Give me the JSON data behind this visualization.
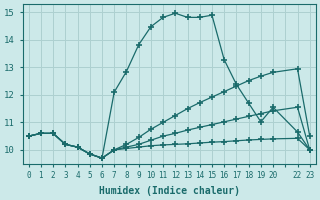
{
  "xlabel": "Humidex (Indice chaleur)",
  "bg_color": "#cce9e9",
  "grid_color": "#add0d0",
  "line_color": "#1a6b6b",
  "xlim": [
    -0.5,
    23.5
  ],
  "ylim": [
    9.5,
    15.3
  ],
  "yticks": [
    10,
    11,
    12,
    13,
    14,
    15
  ],
  "xtick_labels": [
    "0",
    "1",
    "2",
    "3",
    "4",
    "5",
    "6",
    "7",
    "8",
    "9",
    "10",
    "11",
    "12",
    "13",
    "14",
    "15",
    "16",
    "17",
    "18",
    "19",
    "20",
    "",
    "22",
    "23"
  ],
  "lines": [
    {
      "x": [
        0,
        1,
        2,
        3,
        4,
        5,
        6,
        7,
        8,
        9,
        10,
        11,
        12,
        13,
        14,
        15,
        16,
        17,
        18,
        19,
        20,
        22,
        23
      ],
      "y": [
        10.5,
        10.6,
        10.6,
        10.2,
        10.1,
        9.85,
        9.7,
        10.0,
        10.05,
        10.1,
        10.15,
        10.18,
        10.2,
        10.22,
        10.25,
        10.28,
        10.3,
        10.33,
        10.36,
        10.38,
        10.4,
        10.42,
        10.0
      ]
    },
    {
      "x": [
        0,
        1,
        2,
        3,
        4,
        5,
        6,
        7,
        8,
        9,
        10,
        11,
        12,
        13,
        14,
        15,
        16,
        17,
        18,
        19,
        20,
        22,
        23
      ],
      "y": [
        10.5,
        10.6,
        10.6,
        10.2,
        10.1,
        9.85,
        9.7,
        10.0,
        10.1,
        10.2,
        10.35,
        10.5,
        10.6,
        10.72,
        10.82,
        10.92,
        11.02,
        11.12,
        11.22,
        11.32,
        11.42,
        11.55,
        10.0
      ]
    },
    {
      "x": [
        0,
        1,
        2,
        3,
        4,
        5,
        6,
        7,
        8,
        9,
        10,
        11,
        12,
        13,
        14,
        15,
        16,
        17,
        18,
        19,
        20,
        22,
        23
      ],
      "y": [
        10.5,
        10.6,
        10.6,
        10.2,
        10.1,
        9.85,
        9.7,
        10.0,
        10.2,
        10.45,
        10.75,
        11.0,
        11.25,
        11.5,
        11.72,
        11.92,
        12.12,
        12.32,
        12.52,
        12.68,
        12.82,
        12.95,
        10.5
      ]
    },
    {
      "x": [
        0,
        1,
        2,
        3,
        4,
        5,
        6,
        7,
        8,
        9,
        10,
        11,
        12,
        13,
        14,
        15,
        16,
        17,
        18,
        19,
        20,
        22,
        23
      ],
      "y": [
        10.5,
        10.6,
        10.6,
        10.2,
        10.1,
        9.85,
        9.7,
        12.1,
        12.85,
        13.82,
        14.48,
        14.82,
        14.97,
        14.82,
        14.82,
        14.9,
        13.28,
        12.38,
        11.7,
        11.02,
        11.55,
        10.65,
        10.0
      ]
    }
  ]
}
